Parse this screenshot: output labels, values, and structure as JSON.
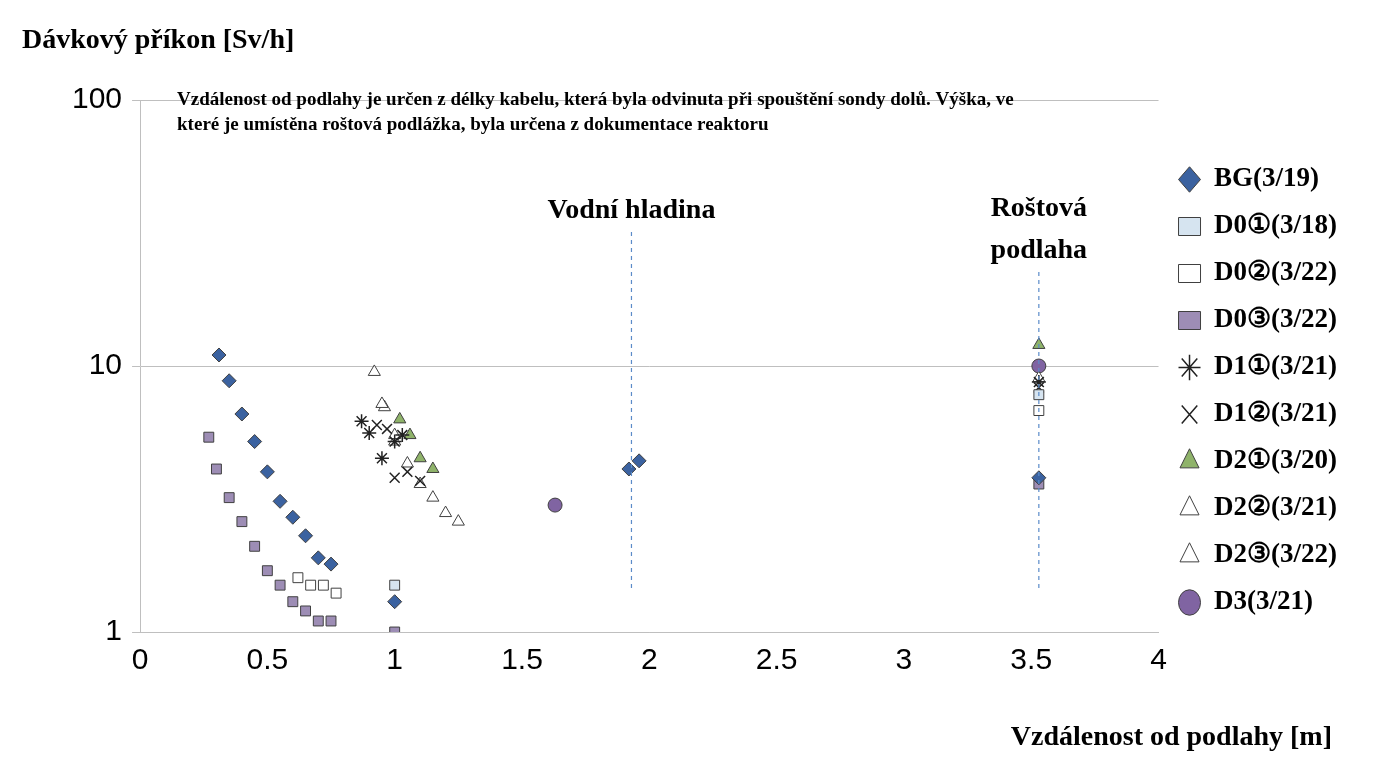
{
  "chart_data": {
    "type": "scatter",
    "y_label": "Dávkový příkon [Sv/h]",
    "x_label": "Vzdálenost od podlahy [m]",
    "note": "Vzdálenost od podlahy je určen z délky kabelu, která byla odvinuta při spouštění sondy dolů. Výška, ve které je umístěna roštová podlážka, byla určena z dokumentace reaktoru",
    "annotations": [
      {
        "text": "Vodní hladina",
        "x": 1.93
      },
      {
        "text": "Roštová podlaha",
        "x": 3.53
      }
    ],
    "xlim": [
      0,
      4
    ],
    "xticks": [
      0,
      0.5,
      1,
      1.5,
      2,
      2.5,
      3,
      3.5,
      4
    ],
    "ylim": [
      1,
      100
    ],
    "yticks": [
      1,
      10,
      100
    ],
    "log": "y",
    "grid": "y",
    "legend": "right",
    "series": [
      {
        "name": "BG(3/19)",
        "color": "#3B62A0",
        "marker": "diamond",
        "x": [
          0.31,
          0.35,
          0.4,
          0.45,
          0.5,
          0.55,
          0.6,
          0.65,
          0.7,
          0.75,
          1.0,
          1.92,
          1.96,
          3.53
        ],
        "values": [
          11,
          8.8,
          6.6,
          5.2,
          4.0,
          3.1,
          2.7,
          2.3,
          1.9,
          1.8,
          1.3,
          4.1,
          4.4,
          3.8
        ]
      },
      {
        "name": "D0①(3/18)",
        "color": "#D6E4F0",
        "marker": "square",
        "x": [
          1.0,
          3.53
        ],
        "values": [
          1.5,
          7.8
        ]
      },
      {
        "name": "D0②(3/22)",
        "color": "#ffffff",
        "marker": "square",
        "x": [
          0.62,
          0.67,
          0.72,
          0.77,
          3.53
        ],
        "values": [
          1.6,
          1.5,
          1.5,
          1.4,
          6.8
        ]
      },
      {
        "name": "D0③(3/22)",
        "color": "#9D8DB5",
        "marker": "square",
        "x": [
          0.27,
          0.3,
          0.35,
          0.4,
          0.45,
          0.5,
          0.55,
          0.6,
          0.65,
          0.7,
          0.75,
          1.0,
          3.53
        ],
        "values": [
          5.4,
          4.1,
          3.2,
          2.6,
          2.1,
          1.7,
          1.5,
          1.3,
          1.2,
          1.1,
          1.1,
          1.0,
          3.6
        ]
      },
      {
        "name": "D1①(3/21)",
        "color": "#222222",
        "marker": "star",
        "x": [
          0.87,
          0.9,
          0.95,
          1.0,
          1.03,
          3.53
        ],
        "values": [
          6.2,
          5.6,
          4.5,
          5.2,
          5.5,
          8.7
        ]
      },
      {
        "name": "D1②(3/21)",
        "color": "#222222",
        "marker": "x",
        "x": [
          0.93,
          0.97,
          1.0,
          1.05,
          1.1,
          3.53
        ],
        "values": [
          6.0,
          5.8,
          3.8,
          4.0,
          3.7,
          8.3
        ]
      },
      {
        "name": "D2①(3/20)",
        "color": "#8FB36A",
        "marker": "triangle",
        "x": [
          1.02,
          1.06,
          1.1,
          1.15,
          3.53
        ],
        "values": [
          6.3,
          5.5,
          4.5,
          4.1,
          12
        ]
      },
      {
        "name": "D2②(3/21)",
        "color": "#ffffff",
        "marker": "triangle",
        "x": [
          0.92,
          0.95,
          1.0,
          1.05,
          3.53
        ],
        "values": [
          9.5,
          7.2,
          5.5,
          4.3,
          9.0
        ]
      },
      {
        "name": "D2③(3/22)",
        "color": "#ffffff",
        "marker": "triangle",
        "x": [
          0.96,
          1.0,
          1.1,
          1.15,
          1.2,
          1.25
        ],
        "values": [
          7.0,
          5.2,
          3.6,
          3.2,
          2.8,
          2.6
        ]
      },
      {
        "name": "D3(3/21)",
        "color": "#8064A2",
        "marker": "circle",
        "x": [
          1.63,
          3.53
        ],
        "values": [
          3.0,
          10
        ]
      }
    ]
  }
}
